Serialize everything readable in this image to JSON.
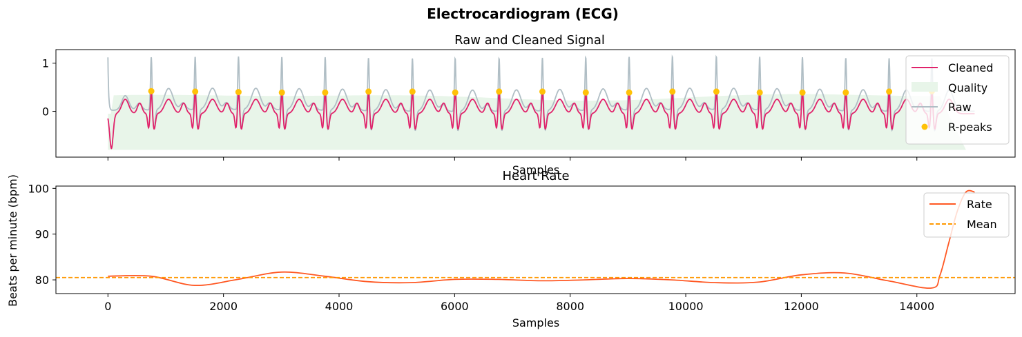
{
  "figure": {
    "title": "Electrocardiogram (ECG)"
  },
  "colors": {
    "cleaned": "#e0226a",
    "raw": "#b0bec5",
    "quality": "#e8f5e9",
    "rpeaks": "#ffc107",
    "rate": "#ff5722",
    "mean": "#ff9800"
  },
  "chart_data": [
    {
      "type": "line",
      "title": "Raw and Cleaned Signal",
      "xlabel": "Samples",
      "ylabel": "",
      "xlim": [
        -900,
        15700
      ],
      "ylim": [
        -0.95,
        1.28
      ],
      "yticks": [
        0,
        1
      ],
      "grid": false,
      "legend_position": "top-right",
      "legend": [
        "Cleaned",
        "Quality",
        "Raw",
        "R-peaks"
      ],
      "rpeaks": {
        "name": "R-peaks",
        "x": [
          750,
          1510,
          2260,
          3010,
          3760,
          4510,
          5270,
          6010,
          6770,
          7520,
          8270,
          9020,
          9770,
          10530,
          11280,
          12020,
          12770,
          13520,
          14260
        ],
        "y": [
          0.42,
          0.41,
          0.4,
          0.39,
          0.39,
          0.41,
          0.41,
          0.39,
          0.41,
          0.41,
          0.39,
          0.39,
          0.41,
          0.41,
          0.39,
          0.39,
          0.39,
          0.41,
          0.42
        ]
      },
      "quality": {
        "name": "Quality",
        "baseline": -0.8,
        "approx_top": 0.38
      },
      "series": [
        {
          "name": "Cleaned",
          "description": "filtered ECG, range about -0.8 to 0.42"
        },
        {
          "name": "Raw",
          "description": "raw ECG, spikes up to about 1.15"
        }
      ]
    },
    {
      "type": "line",
      "title": "Heart Rate",
      "xlabel": "Samples",
      "ylabel": "Beats per minute (bpm)",
      "xlim": [
        -900,
        15700
      ],
      "ylim": [
        77,
        100.5
      ],
      "xticks": [
        0,
        2000,
        4000,
        6000,
        8000,
        10000,
        12000,
        14000
      ],
      "yticks": [
        80,
        90,
        100
      ],
      "grid": false,
      "legend_position": "top-right",
      "legend": [
        "Rate",
        "Mean"
      ],
      "mean": 80.5,
      "series": [
        {
          "name": "Rate",
          "x": [
            0,
            750,
            1500,
            2250,
            3000,
            3750,
            4500,
            5250,
            6000,
            6750,
            7500,
            8250,
            9000,
            9750,
            10500,
            11250,
            12000,
            12750,
            13500,
            14250,
            14400,
            14550,
            14700,
            14850,
            15000
          ],
          "y": [
            80.8,
            80.8,
            78.8,
            80.1,
            81.7,
            80.8,
            79.6,
            79.4,
            80.1,
            80.1,
            79.8,
            80.0,
            80.3,
            80.0,
            79.4,
            79.5,
            81.1,
            81.5,
            79.8,
            78.2,
            81.0,
            88.0,
            95.0,
            99.2,
            99.2
          ]
        }
      ]
    }
  ]
}
